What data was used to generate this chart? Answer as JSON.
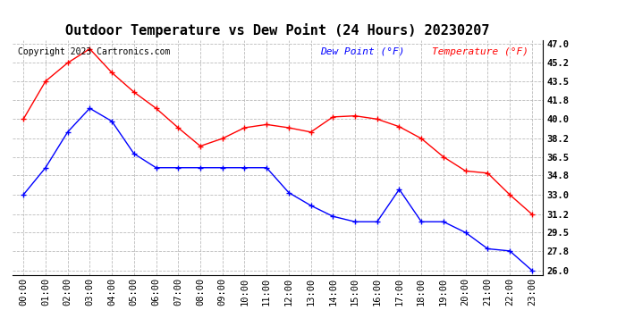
{
  "title": "Outdoor Temperature vs Dew Point (24 Hours) 20230207",
  "copyright": "Copyright 2023 Cartronics.com",
  "legend_dew": "Dew Point (°F)",
  "legend_temp": "Temperature (°F)",
  "hours": [
    "00:00",
    "01:00",
    "02:00",
    "03:00",
    "04:00",
    "05:00",
    "06:00",
    "07:00",
    "08:00",
    "09:00",
    "10:00",
    "11:00",
    "12:00",
    "13:00",
    "14:00",
    "15:00",
    "16:00",
    "17:00",
    "18:00",
    "19:00",
    "20:00",
    "21:00",
    "22:00",
    "23:00"
  ],
  "temperature": [
    40.0,
    43.5,
    45.2,
    46.5,
    44.3,
    42.5,
    41.0,
    39.2,
    37.5,
    38.2,
    39.2,
    39.5,
    39.2,
    38.8,
    40.2,
    40.3,
    40.0,
    39.3,
    38.2,
    36.5,
    35.2,
    35.0,
    33.0,
    31.2
  ],
  "dew_point": [
    33.0,
    35.5,
    38.8,
    41.0,
    39.8,
    36.8,
    35.5,
    35.5,
    35.5,
    35.5,
    35.5,
    35.5,
    33.2,
    32.0,
    31.0,
    30.5,
    30.5,
    33.5,
    30.5,
    30.5,
    29.5,
    28.0,
    27.8,
    26.0
  ],
  "ylim_min": 25.6,
  "ylim_max": 47.3,
  "yticks": [
    26.0,
    27.8,
    29.5,
    31.2,
    33.0,
    34.8,
    36.5,
    38.2,
    40.0,
    41.8,
    43.5,
    45.2,
    47.0
  ],
  "temp_color": "red",
  "dew_color": "blue",
  "background_color": "#ffffff",
  "grid_color": "#bbbbbb",
  "title_fontsize": 11,
  "copyright_fontsize": 7,
  "legend_fontsize": 8,
  "tick_fontsize": 7.5
}
